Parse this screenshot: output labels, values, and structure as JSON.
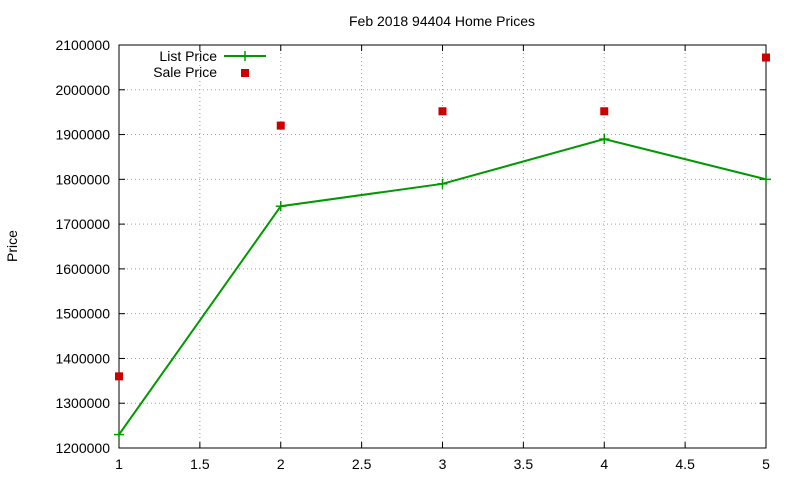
{
  "chart_data": {
    "type": "line",
    "title": "Feb 2018 94404 Home Prices",
    "xlabel": "",
    "ylabel": "Price",
    "xlim": [
      1,
      5
    ],
    "ylim": [
      1200000,
      2100000
    ],
    "x_ticks": [
      1,
      1.5,
      2,
      2.5,
      3,
      3.5,
      4,
      4.5,
      5
    ],
    "x_tick_labels": [
      "1",
      "1.5",
      "2",
      "2.5",
      "3",
      "3.5",
      "4",
      "4.5",
      "5"
    ],
    "y_ticks": [
      1200000,
      1300000,
      1400000,
      1500000,
      1600000,
      1700000,
      1800000,
      1900000,
      2000000,
      2100000
    ],
    "y_tick_labels": [
      "1200000",
      "1300000",
      "1400000",
      "1500000",
      "1600000",
      "1700000",
      "1800000",
      "1900000",
      "2000000",
      "2100000"
    ],
    "grid": true,
    "legend_position": "top-left",
    "series": [
      {
        "name": "List Price",
        "style": "linespoints",
        "marker": "plus",
        "color": "#009900",
        "x": [
          1,
          2,
          3,
          4,
          5
        ],
        "values": [
          1230000,
          1740000,
          1790000,
          1890000,
          1800000
        ]
      },
      {
        "name": "Sale Price",
        "style": "points",
        "marker": "square",
        "color": "#cc0000",
        "x": [
          1,
          2,
          3,
          4,
          5
        ],
        "values": [
          1360000,
          1920000,
          1952000,
          1952000,
          2072000
        ]
      }
    ]
  }
}
